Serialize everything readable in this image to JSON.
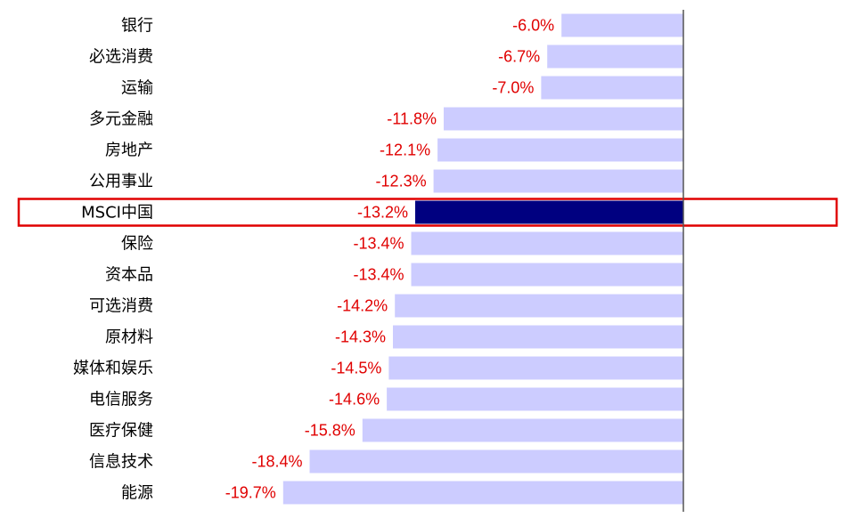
{
  "chart_data": {
    "type": "bar",
    "orientation": "horizontal",
    "categories": [
      "银行",
      "必选消费",
      "运输",
      "多元金融",
      "房地产",
      "公用事业",
      "MSCI中国",
      "保险",
      "资本品",
      "可选消费",
      "原材料",
      "媒体和娱乐",
      "电信服务",
      "医疗保健",
      "信息技术",
      "能源"
    ],
    "values": [
      -6.0,
      -6.7,
      -7.0,
      -11.8,
      -12.1,
      -12.3,
      -13.2,
      -13.4,
      -13.4,
      -14.2,
      -14.3,
      -14.5,
      -14.6,
      -15.8,
      -18.4,
      -19.7
    ],
    "value_labels": [
      "-6.0%",
      "-6.7%",
      "-7.0%",
      "-11.8%",
      "-12.1%",
      "-12.3%",
      "-13.2%",
      "-13.4%",
      "-13.4%",
      "-14.2%",
      "-14.3%",
      "-14.5%",
      "-14.6%",
      "-15.8%",
      "-18.4%",
      "-19.7%"
    ],
    "highlight": "MSCI中国",
    "unit": "%",
    "title": "",
    "xlabel": "",
    "ylabel": "",
    "xlim": [
      -20,
      0
    ],
    "grid": false,
    "legend": "none"
  },
  "colors": {
    "bar": "#ccccff",
    "highlight_bar": "#000080",
    "highlight_box": "#e00000",
    "value_label": "#e00000",
    "axis": "#555555",
    "category_label": "#000000"
  }
}
